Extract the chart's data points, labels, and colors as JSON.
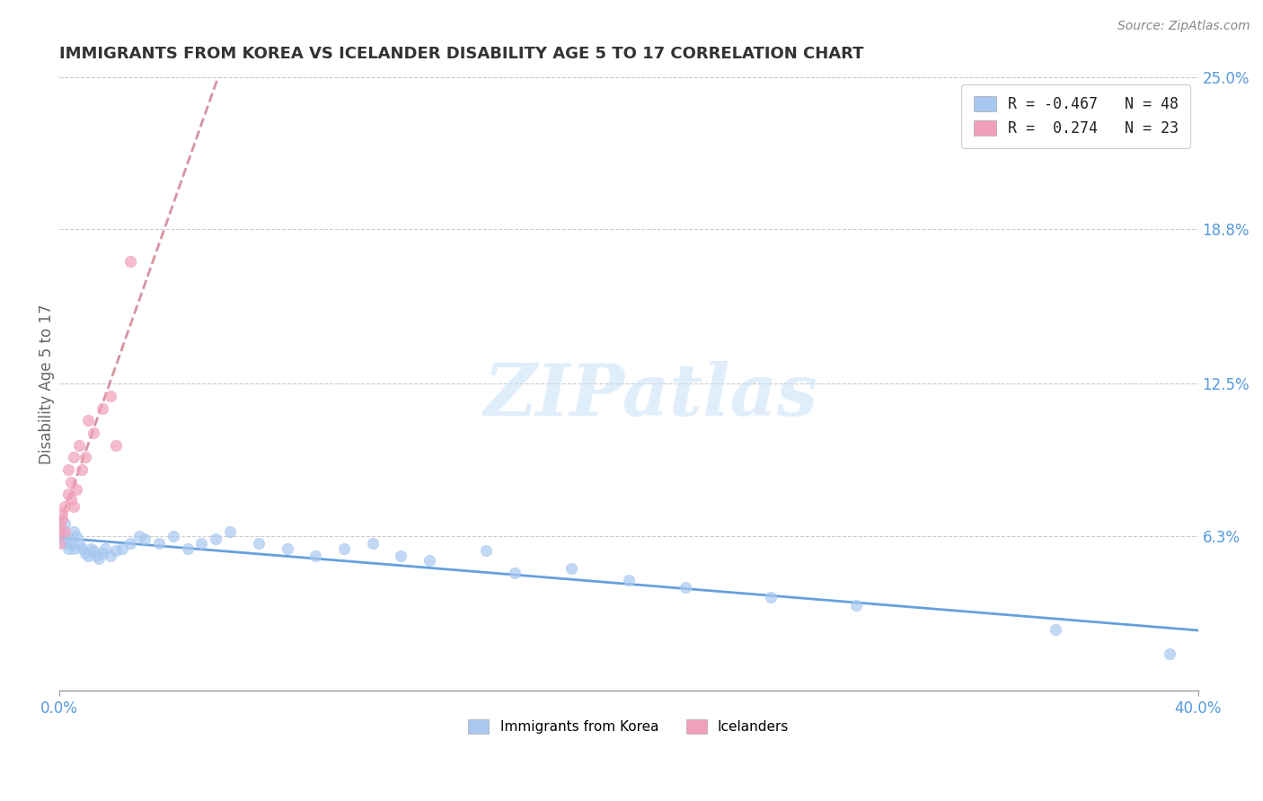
{
  "title": "IMMIGRANTS FROM KOREA VS ICELANDER DISABILITY AGE 5 TO 17 CORRELATION CHART",
  "source": "Source: ZipAtlas.com",
  "ylabel": "Disability Age 5 to 17",
  "xlim": [
    0.0,
    0.4
  ],
  "ylim": [
    0.0,
    0.25
  ],
  "xtick_positions": [
    0.0,
    0.4
  ],
  "xtick_labels": [
    "0.0%",
    "40.0%"
  ],
  "ytick_values": [
    0.063,
    0.125,
    0.188,
    0.25
  ],
  "ytick_labels": [
    "6.3%",
    "12.5%",
    "18.8%",
    "25.0%"
  ],
  "watermark_text": "ZIPatlas",
  "series": [
    {
      "name": "Immigrants from Korea",
      "R": -0.467,
      "N": 48,
      "dot_color": "#A8C8F0",
      "line_color": "#4A90D9",
      "line_style": "solid",
      "x": [
        0.0,
        0.001,
        0.002,
        0.002,
        0.003,
        0.003,
        0.004,
        0.005,
        0.005,
        0.006,
        0.007,
        0.008,
        0.009,
        0.01,
        0.011,
        0.012,
        0.013,
        0.014,
        0.015,
        0.016,
        0.018,
        0.02,
        0.022,
        0.025,
        0.028,
        0.03,
        0.035,
        0.04,
        0.045,
        0.05,
        0.055,
        0.06,
        0.07,
        0.08,
        0.09,
        0.1,
        0.11,
        0.12,
        0.13,
        0.15,
        0.16,
        0.18,
        0.2,
        0.22,
        0.25,
        0.28,
        0.35,
        0.39
      ],
      "y": [
        0.063,
        0.065,
        0.06,
        0.068,
        0.058,
        0.062,
        0.06,
        0.065,
        0.058,
        0.063,
        0.06,
        0.058,
        0.056,
        0.055,
        0.058,
        0.057,
        0.055,
        0.054,
        0.056,
        0.058,
        0.055,
        0.057,
        0.058,
        0.06,
        0.063,
        0.062,
        0.06,
        0.063,
        0.058,
        0.06,
        0.062,
        0.065,
        0.06,
        0.058,
        0.055,
        0.058,
        0.06,
        0.055,
        0.053,
        0.057,
        0.048,
        0.05,
        0.045,
        0.042,
        0.038,
        0.035,
        0.025,
        0.015
      ]
    },
    {
      "name": "Icelanders",
      "R": 0.274,
      "N": 23,
      "dot_color": "#F0A0B8",
      "line_color": "#D08090",
      "line_style": "dashed",
      "x": [
        0.0,
        0.0,
        0.0,
        0.001,
        0.001,
        0.002,
        0.002,
        0.003,
        0.003,
        0.004,
        0.004,
        0.005,
        0.005,
        0.006,
        0.007,
        0.008,
        0.009,
        0.01,
        0.012,
        0.015,
        0.018,
        0.02,
        0.025
      ],
      "y": [
        0.065,
        0.068,
        0.06,
        0.07,
        0.072,
        0.075,
        0.065,
        0.08,
        0.09,
        0.078,
        0.085,
        0.075,
        0.095,
        0.082,
        0.1,
        0.09,
        0.095,
        0.11,
        0.105,
        0.115,
        0.12,
        0.1,
        0.175
      ]
    }
  ],
  "background_color": "#FFFFFF",
  "grid_color": "#CCCCCC",
  "title_color": "#333333",
  "title_fontsize": 13,
  "axis_label_color": "#666666",
  "tick_color": "#5599DD",
  "legend_r_color": "#CC3300",
  "legend_n_color": "#5599DD"
}
